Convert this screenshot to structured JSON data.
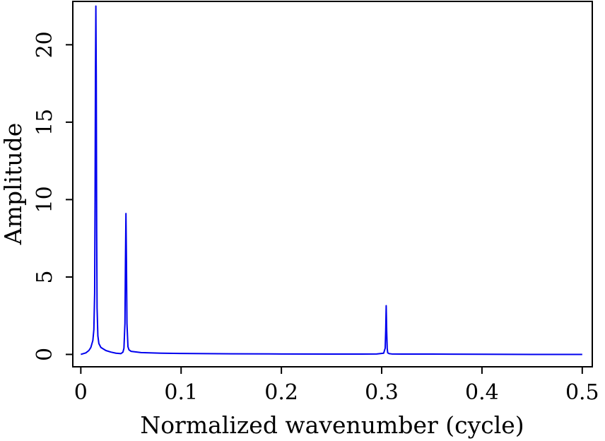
{
  "chart_data": {
    "type": "line",
    "title": "",
    "xlabel": "Normalized wavenumber (cycle)",
    "ylabel": "Amplitude",
    "xlim": [
      -0.008,
      0.51
    ],
    "ylim": [
      -0.8,
      22.8
    ],
    "xticks": [
      0,
      0.1,
      0.2,
      0.3,
      0.4,
      0.5
    ],
    "xtick_labels": [
      "0",
      "0.1",
      "0.2",
      "0.3",
      "0.4",
      "0.5"
    ],
    "yticks": [
      0,
      5,
      10,
      15,
      20
    ],
    "ytick_labels": [
      "0",
      "5",
      "10",
      "15",
      "20"
    ],
    "grid": false,
    "series_color": "#0000ee",
    "series": [
      {
        "x": [
          0,
          0.005,
          0.008,
          0.01,
          0.012,
          0.013,
          0.0138,
          0.0142,
          0.0146,
          0.015,
          0.0154,
          0.0158,
          0.0162,
          0.017,
          0.018,
          0.02,
          0.025,
          0.03,
          0.035,
          0.04,
          0.042,
          0.043,
          0.044,
          0.0445,
          0.045,
          0.0455,
          0.046,
          0.047,
          0.048,
          0.05,
          0.06,
          0.08,
          0.1,
          0.15,
          0.2,
          0.25,
          0.28,
          0.295,
          0.302,
          0.3035,
          0.304,
          0.3045,
          0.305,
          0.3055,
          0.306,
          0.3075,
          0.31,
          0.32,
          0.35,
          0.4,
          0.45,
          0.5
        ],
        "y": [
          0.0,
          0.1,
          0.25,
          0.45,
          0.9,
          1.6,
          4.0,
          10.0,
          18.0,
          22.5,
          18.0,
          8.0,
          3.0,
          1.2,
          0.7,
          0.45,
          0.25,
          0.15,
          0.08,
          0.05,
          0.15,
          0.4,
          2.0,
          6.0,
          9.1,
          6.0,
          2.0,
          0.5,
          0.3,
          0.2,
          0.12,
          0.08,
          0.06,
          0.04,
          0.03,
          0.02,
          0.02,
          0.03,
          0.08,
          0.4,
          1.5,
          3.15,
          1.5,
          0.4,
          0.1,
          0.05,
          0.03,
          0.02,
          0.02,
          0.01,
          0.0,
          0.0
        ]
      }
    ]
  }
}
